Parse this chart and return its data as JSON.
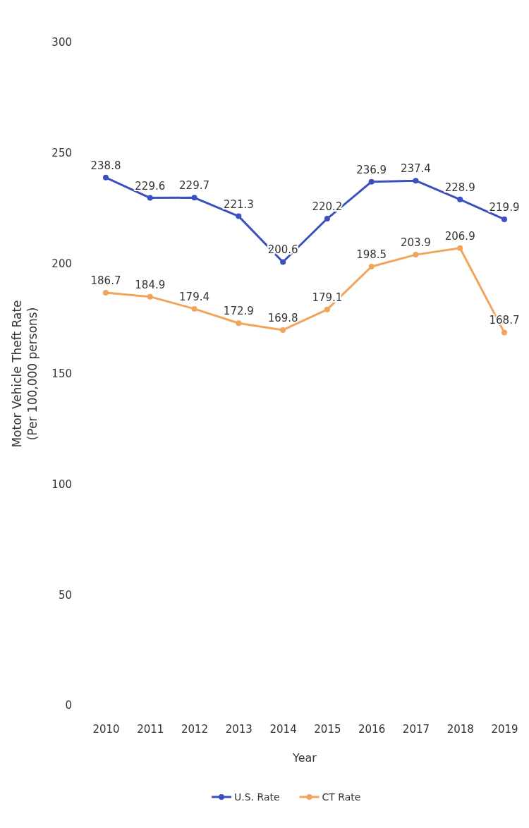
{
  "chart_data": {
    "type": "line",
    "categories": [
      "2010",
      "2011",
      "2012",
      "2013",
      "2014",
      "2015",
      "2016",
      "2017",
      "2018",
      "2019"
    ],
    "series": [
      {
        "name": "U.S. Rate",
        "color": "#3a4fc0",
        "values": [
          238.8,
          229.6,
          229.7,
          221.3,
          200.6,
          220.2,
          236.9,
          237.4,
          228.9,
          219.9
        ]
      },
      {
        "name": "CT Rate",
        "color": "#f0a55a",
        "values": [
          186.7,
          184.9,
          179.4,
          172.9,
          169.8,
          179.1,
          198.5,
          203.9,
          206.9,
          168.7
        ]
      }
    ],
    "ylim": [
      0,
      300
    ],
    "yticks": [
      0,
      50,
      100,
      150,
      200,
      250,
      300
    ],
    "xlabel": "Year",
    "ylabel": "Motor Vehicle Theft Rate\n(Per 100,000 persons)",
    "data_labels": true,
    "legend": "bottom",
    "marker": "circle",
    "line_style": "solid",
    "grid": false
  }
}
